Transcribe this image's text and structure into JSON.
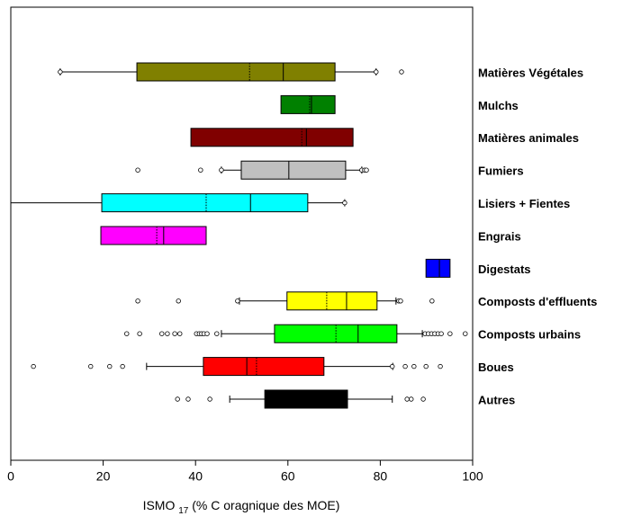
{
  "chart_data": {
    "type": "boxplot",
    "xlabel": "ISMO",
    "xlabel_sub": "17",
    "xlabel_rest": "(% C oragnique des MOE)",
    "xlim": [
      0,
      100
    ],
    "xticks": [
      0,
      20,
      40,
      60,
      80,
      100
    ],
    "series": [
      {
        "name": "Matières Végétales",
        "color": "#808000",
        "whisker_low": 10.7,
        "q1": 27.3,
        "median": 59,
        "mean": 51.7,
        "q3": 70.2,
        "whisker_high": 79.1,
        "outliers": [
          10.7,
          79.1,
          84.6
        ]
      },
      {
        "name": "Mulchs",
        "color": "#008000",
        "q1": 58.5,
        "median": 65.1,
        "mean": 64.7,
        "q3": 70.2
      },
      {
        "name": "Matières animales",
        "color": "#800000",
        "q1": 39,
        "median": 64,
        "mean": 63,
        "q3": 74.1
      },
      {
        "name": "Fumiers",
        "color": "#c0c0c0",
        "whisker_low": 45.6,
        "q1": 49.9,
        "median": 60.2,
        "q3": 72.5,
        "whisker_high": 76,
        "outliers": [
          27.5,
          41.1,
          45.6,
          76,
          76.6,
          77
        ]
      },
      {
        "name": "Lisiers + Fientes",
        "color": "#00ffff",
        "whisker_low": 0,
        "q1": 19.7,
        "median": 51.9,
        "mean": 42.3,
        "q3": 64.3,
        "whisker_high": 72.3,
        "outliers": [
          72.3
        ]
      },
      {
        "name": "Engrais",
        "color": "#ff00ff",
        "q1": 19.5,
        "median": 33.1,
        "mean": 31.6,
        "q3": 42.3
      },
      {
        "name": "Digestats",
        "color": "#0000ff",
        "q1": 89.9,
        "median": 92.8,
        "q3": 95.1
      },
      {
        "name": "Composts d'effluents",
        "color": "#ffff00",
        "whisker_low": 49.5,
        "q1": 59.8,
        "median": 72.7,
        "mean": 68.4,
        "q3": 79.3,
        "whisker_high": 83.4,
        "outliers": [
          27.5,
          36.3,
          49.1,
          84,
          84.4,
          91.2
        ]
      },
      {
        "name": "Composts urbains",
        "color": "#00ff00",
        "whisker_low": 45.6,
        "q1": 57.1,
        "median": 75.2,
        "mean": 70.4,
        "q3": 83.6,
        "whisker_high": 89.1,
        "outliers": [
          25.1,
          27.9,
          32.7,
          33.9,
          35.5,
          36.6,
          40.2,
          40.8,
          41.3,
          41.8,
          42.5,
          44.6,
          89.7,
          90.4,
          91.1,
          91.8,
          92.5,
          93.2,
          95.1,
          98.4
        ]
      },
      {
        "name": "Boues",
        "color": "#ff0000",
        "whisker_low": 29.4,
        "q1": 41.7,
        "median": 51.1,
        "mean": 53.2,
        "q3": 67.8,
        "whisker_high": 82.7,
        "outliers": [
          4.9,
          17.3,
          21.4,
          24.2,
          82.6,
          85.4,
          87.3,
          89.9,
          93
        ]
      },
      {
        "name": "Autres",
        "color": "#000000",
        "whisker_low": 47.4,
        "q1": 55,
        "q3": 72.9,
        "whisker_high": 82.6,
        "outliers": [
          36.1,
          38.4,
          43.1,
          85.8,
          86.7,
          89.3
        ]
      }
    ]
  }
}
